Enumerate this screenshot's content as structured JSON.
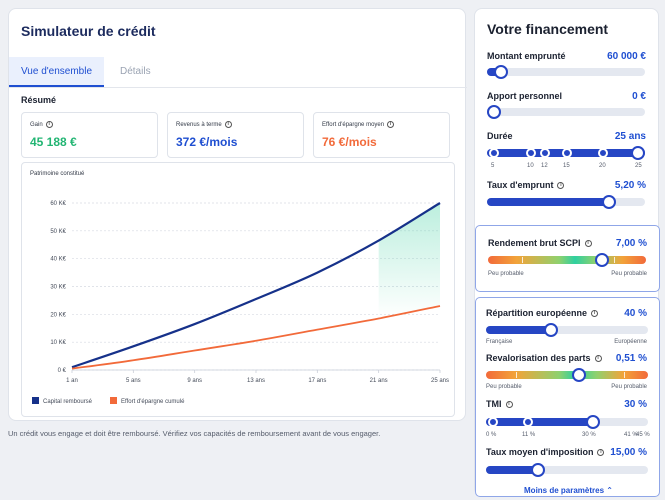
{
  "simulator": {
    "title": "Simulateur de crédit",
    "tabs": [
      {
        "label": "Vue d'ensemble"
      },
      {
        "label": "Détails"
      }
    ],
    "summary_heading": "Résumé",
    "kpis": [
      {
        "label": "Gain",
        "value": "45 188 €",
        "color": "#22b573"
      },
      {
        "label": "Revenus à terme",
        "value": "372 €/mois",
        "color": "#1f4fd1"
      },
      {
        "label": "Effort d'épargne moyen",
        "value": "76 €/mois",
        "color": "#f26a3a"
      }
    ],
    "disclaimer": "Un crédit vous engage et doit être remboursé. Vérifiez vos capacités de remboursement avant de vous engager."
  },
  "chart_data": {
    "type": "line",
    "title": "Patrimoine constitué",
    "x": [
      1,
      5,
      9,
      13,
      17,
      21,
      25
    ],
    "x_tick_labels": [
      "1 an",
      "5 ans",
      "9 ans",
      "13 ans",
      "17 ans",
      "21 ans",
      "25 ans"
    ],
    "y_tick_labels": [
      "0 €",
      "10 K€",
      "20 K€",
      "30 K€",
      "40 K€",
      "50 K€",
      "60 K€"
    ],
    "y_ticks": [
      0,
      10000,
      20000,
      30000,
      40000,
      50000,
      60000
    ],
    "ylim": [
      0,
      60000
    ],
    "xlim": [
      1,
      25
    ],
    "series": [
      {
        "name": "Capital remboursé",
        "color": "#16318a",
        "values": [
          1000,
          8500,
          16500,
          25500,
          35000,
          46500,
          60000
        ]
      },
      {
        "name": "Effort d'épargne cumulé",
        "color": "#f26a3a",
        "values": [
          500,
          3500,
          7000,
          10500,
          14500,
          18500,
          23000
        ]
      }
    ],
    "legend_position": "bottom-left"
  },
  "financing": {
    "title": "Votre financement",
    "amount": {
      "label": "Montant emprunté",
      "value": "60 000 €",
      "fraction": 0.09
    },
    "contribution": {
      "label": "Apport personnel",
      "value": "0 €",
      "fraction": 0.0
    },
    "duration": {
      "label": "Durée",
      "value": "25 ans",
      "fraction": 1.0,
      "ticks": [
        "5",
        "10",
        "12",
        "15",
        "20",
        "25"
      ]
    },
    "rate": {
      "label": "Taux d'emprunt",
      "value": "5,20 %",
      "fraction": 0.79
    },
    "scpi": {
      "label": "Rendement brut SCPI",
      "value": "7,00 %",
      "fraction": 0.72,
      "left": "Peu probable",
      "right": "Peu probable"
    },
    "europe": {
      "label": "Répartition européenne",
      "value": "40 %",
      "fraction": 0.4,
      "left": "Française",
      "right": "Européenne"
    },
    "revalo": {
      "label": "Revalorisation des parts",
      "value": "0,51 %",
      "fraction": 0.57,
      "left": "Peu probable",
      "right": "Peu probable"
    },
    "tmi": {
      "label": "TMI",
      "value": "30 %",
      "fraction": 0.66,
      "ticks": [
        "0 %",
        "11 %",
        "30 %",
        "41 %",
        "45 %"
      ]
    },
    "avg_tax": {
      "label": "Taux moyen d'imposition",
      "value": "15,00 %",
      "fraction": 0.3
    },
    "more": "Moins de paramètres",
    "accent": "#2646c4"
  }
}
